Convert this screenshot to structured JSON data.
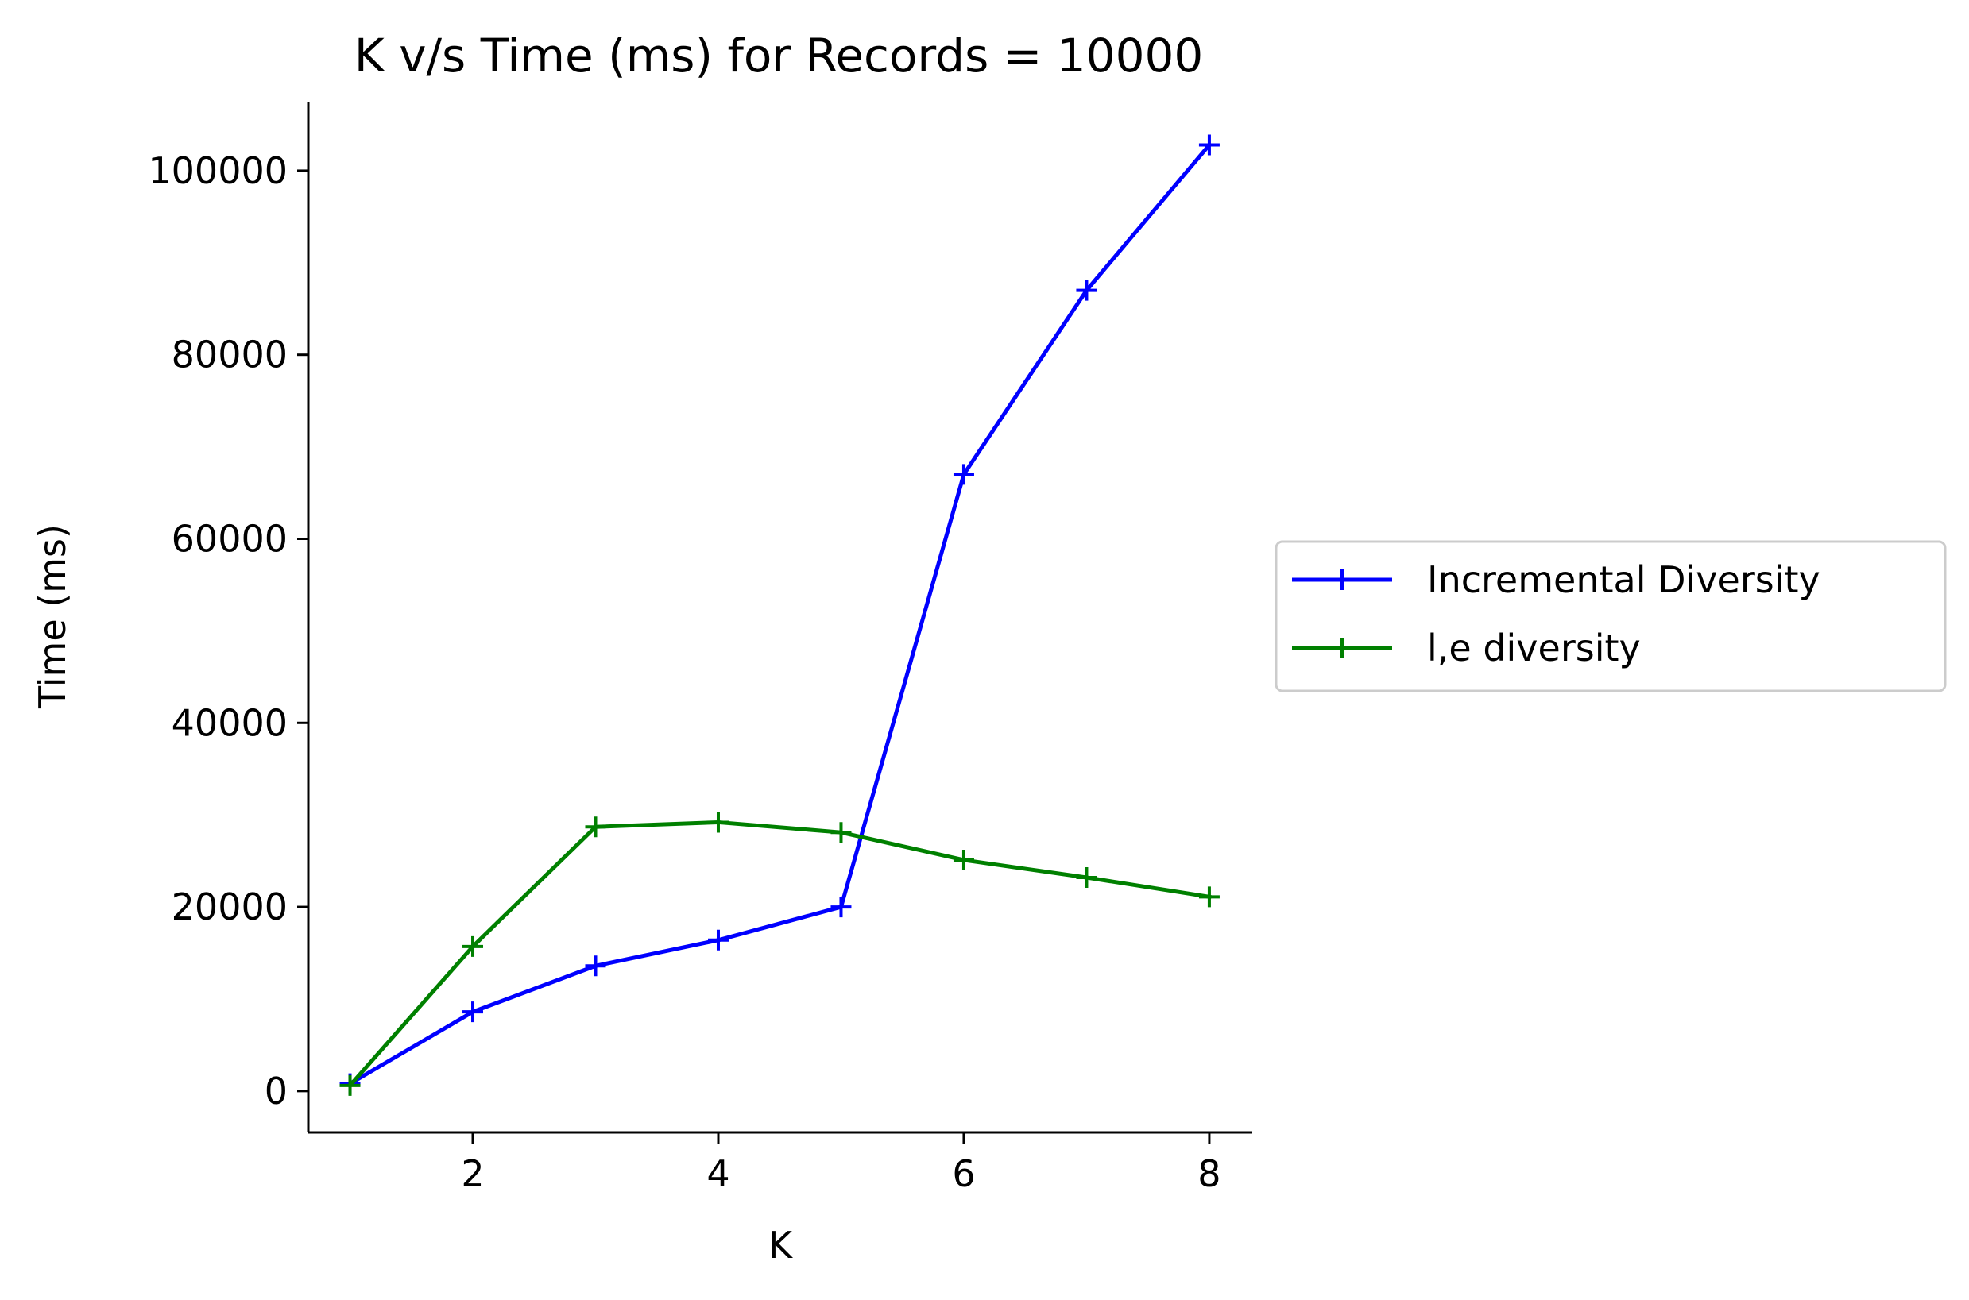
{
  "chart_data": {
    "type": "line",
    "title": "K v/s Time (ms) for Records = 10000",
    "xlabel": "K",
    "ylabel": "Time (ms)",
    "x": [
      1,
      2,
      3,
      4,
      5,
      6,
      7,
      8
    ],
    "xticks": [
      2,
      4,
      6,
      8
    ],
    "xtick_labels": [
      "2",
      "4",
      "6",
      "8"
    ],
    "yticks": [
      0,
      20000,
      40000,
      60000,
      80000,
      100000
    ],
    "ytick_labels": [
      "0",
      "20000",
      "40000",
      "60000",
      "80000",
      "100000"
    ],
    "xlim": [
      0.66,
      8.35
    ],
    "ylim": [
      -4500,
      107500
    ],
    "grid": false,
    "legend_position": "right, outside plot area",
    "marker": "+",
    "series": [
      {
        "name": "Incremental Diversity",
        "color": "#0000ff",
        "values": [
          800,
          8600,
          13600,
          16400,
          20000,
          67000,
          87000,
          102800
        ]
      },
      {
        "name": "l,e diversity",
        "color": "#008000",
        "values": [
          600,
          15700,
          28700,
          29200,
          28100,
          25100,
          23200,
          21100
        ]
      }
    ]
  }
}
